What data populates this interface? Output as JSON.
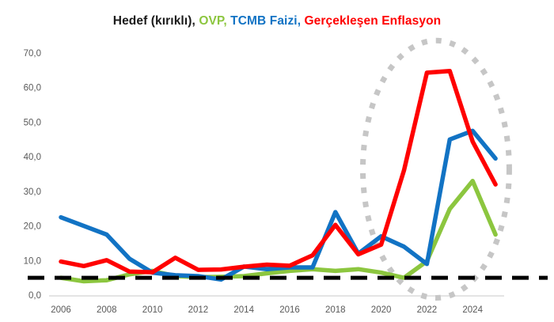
{
  "title": {
    "parts": [
      {
        "id": "hedef",
        "label": "Hedef (kırıklı),",
        "color": "#1a1a1a"
      },
      {
        "id": "ovp",
        "label": " OVP,",
        "color": "#8CC63F"
      },
      {
        "id": "tcmb",
        "label": " TCMB Faizi,",
        "color": "#1273C4"
      },
      {
        "id": "enflasyon",
        "label": " Gerçekleşen Enflasyon",
        "color": "#FF0000"
      }
    ]
  },
  "chart_data": {
    "type": "line",
    "x": [
      2006,
      2007,
      2008,
      2009,
      2010,
      2011,
      2012,
      2013,
      2014,
      2015,
      2016,
      2017,
      2018,
      2019,
      2020,
      2021,
      2022,
      2023,
      2024,
      2025
    ],
    "series": [
      {
        "name": "OVP",
        "color": "#8CC63F",
        "values": [
          5,
          4,
          4.3,
          6,
          7,
          5.5,
          5.2,
          5.3,
          5.5,
          6.3,
          7,
          7.5,
          7,
          7.5,
          6.5,
          5,
          9.8,
          24.9,
          33,
          17.5
        ]
      },
      {
        "name": "TCMB Faizi",
        "color": "#1273C4",
        "values": [
          22.5,
          20,
          17.5,
          10.5,
          6.5,
          5.75,
          5.5,
          4.5,
          8.25,
          7.5,
          8,
          8,
          24,
          12,
          17,
          14,
          9,
          45,
          47.5,
          39.5
        ]
      },
      {
        "name": "Gerçekleşen Enflasyon",
        "color": "#FF0000",
        "values": [
          9.7,
          8.4,
          10.1,
          6.8,
          6.6,
          10.8,
          7.3,
          7.4,
          8.2,
          8.8,
          8.5,
          11.5,
          20.3,
          11.8,
          14.6,
          36.1,
          64.3,
          64.8,
          44.4,
          32
        ]
      }
    ],
    "target_line": {
      "name": "Hedef (kırıklı)",
      "value": 5,
      "style": "dashed",
      "color": "#000000"
    },
    "y_axis": {
      "min": 0,
      "max": 70,
      "tick_step": 10,
      "tick_labels": [
        "0,0",
        "10,0",
        "20,0",
        "30,0",
        "40,0",
        "50,0",
        "60,0",
        "70,0"
      ]
    },
    "x_axis": {
      "tick_years": [
        2006,
        2008,
        2010,
        2012,
        2014,
        2016,
        2018,
        2020,
        2022,
        2024
      ]
    },
    "annotation_ellipse": {
      "around": "2021-2025 surge",
      "center_year": 2022.4,
      "center_value": 36.4,
      "radius_years": 3.2,
      "radius_value": 37.2,
      "style": "dotted",
      "color": "#C6C6C6"
    },
    "grid": "off",
    "legend_position": "top-title",
    "axis_line_color": "#C9C9C9",
    "tick_label_color": "#595959"
  }
}
